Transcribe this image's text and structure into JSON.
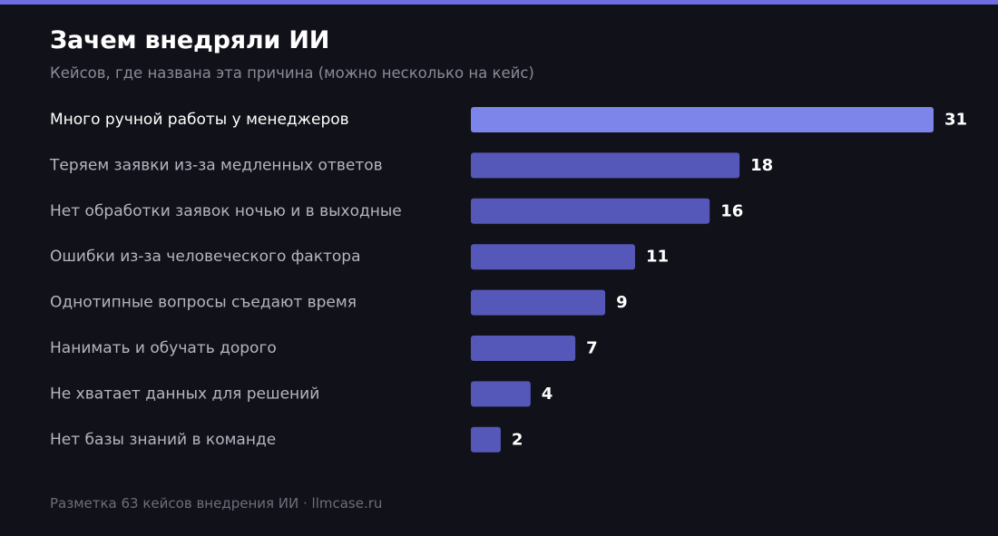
{
  "colors": {
    "background": "#111119",
    "accent_bar": "#6d6fe0",
    "bar_primary": "#7d84ea",
    "bar_default": "#5558b8",
    "label_highlight": "#ffffff",
    "label_default": "#b5b5c2",
    "subtitle": "#8a8a99",
    "footer": "#6e6e7c"
  },
  "footer": "Разметка 63 кейсов внедрения ИИ · llmcase.ru",
  "chart_data": {
    "type": "bar",
    "orientation": "horizontal",
    "title": "Зачем внедряли ИИ",
    "subtitle": "Кейсов, где названа эта причина (можно несколько на кейс)",
    "categories": [
      "Много ручной работы у менеджеров",
      "Теряем заявки из-за медленных ответов",
      "Нет обработки заявок ночью и в выходные",
      "Ошибки из-за человеческого фактора",
      "Однотипные вопросы съедают время",
      "Нанимать и обучать дорого",
      "Не хватает данных для решений",
      "Нет базы знаний в команде"
    ],
    "values": [
      31,
      18,
      16,
      11,
      9,
      7,
      4,
      2
    ],
    "data_labels": [
      "31",
      "18",
      "16",
      "11",
      "9",
      "7",
      "4",
      "2"
    ],
    "xlim": [
      0,
      31
    ],
    "grid": false,
    "legend": false
  }
}
